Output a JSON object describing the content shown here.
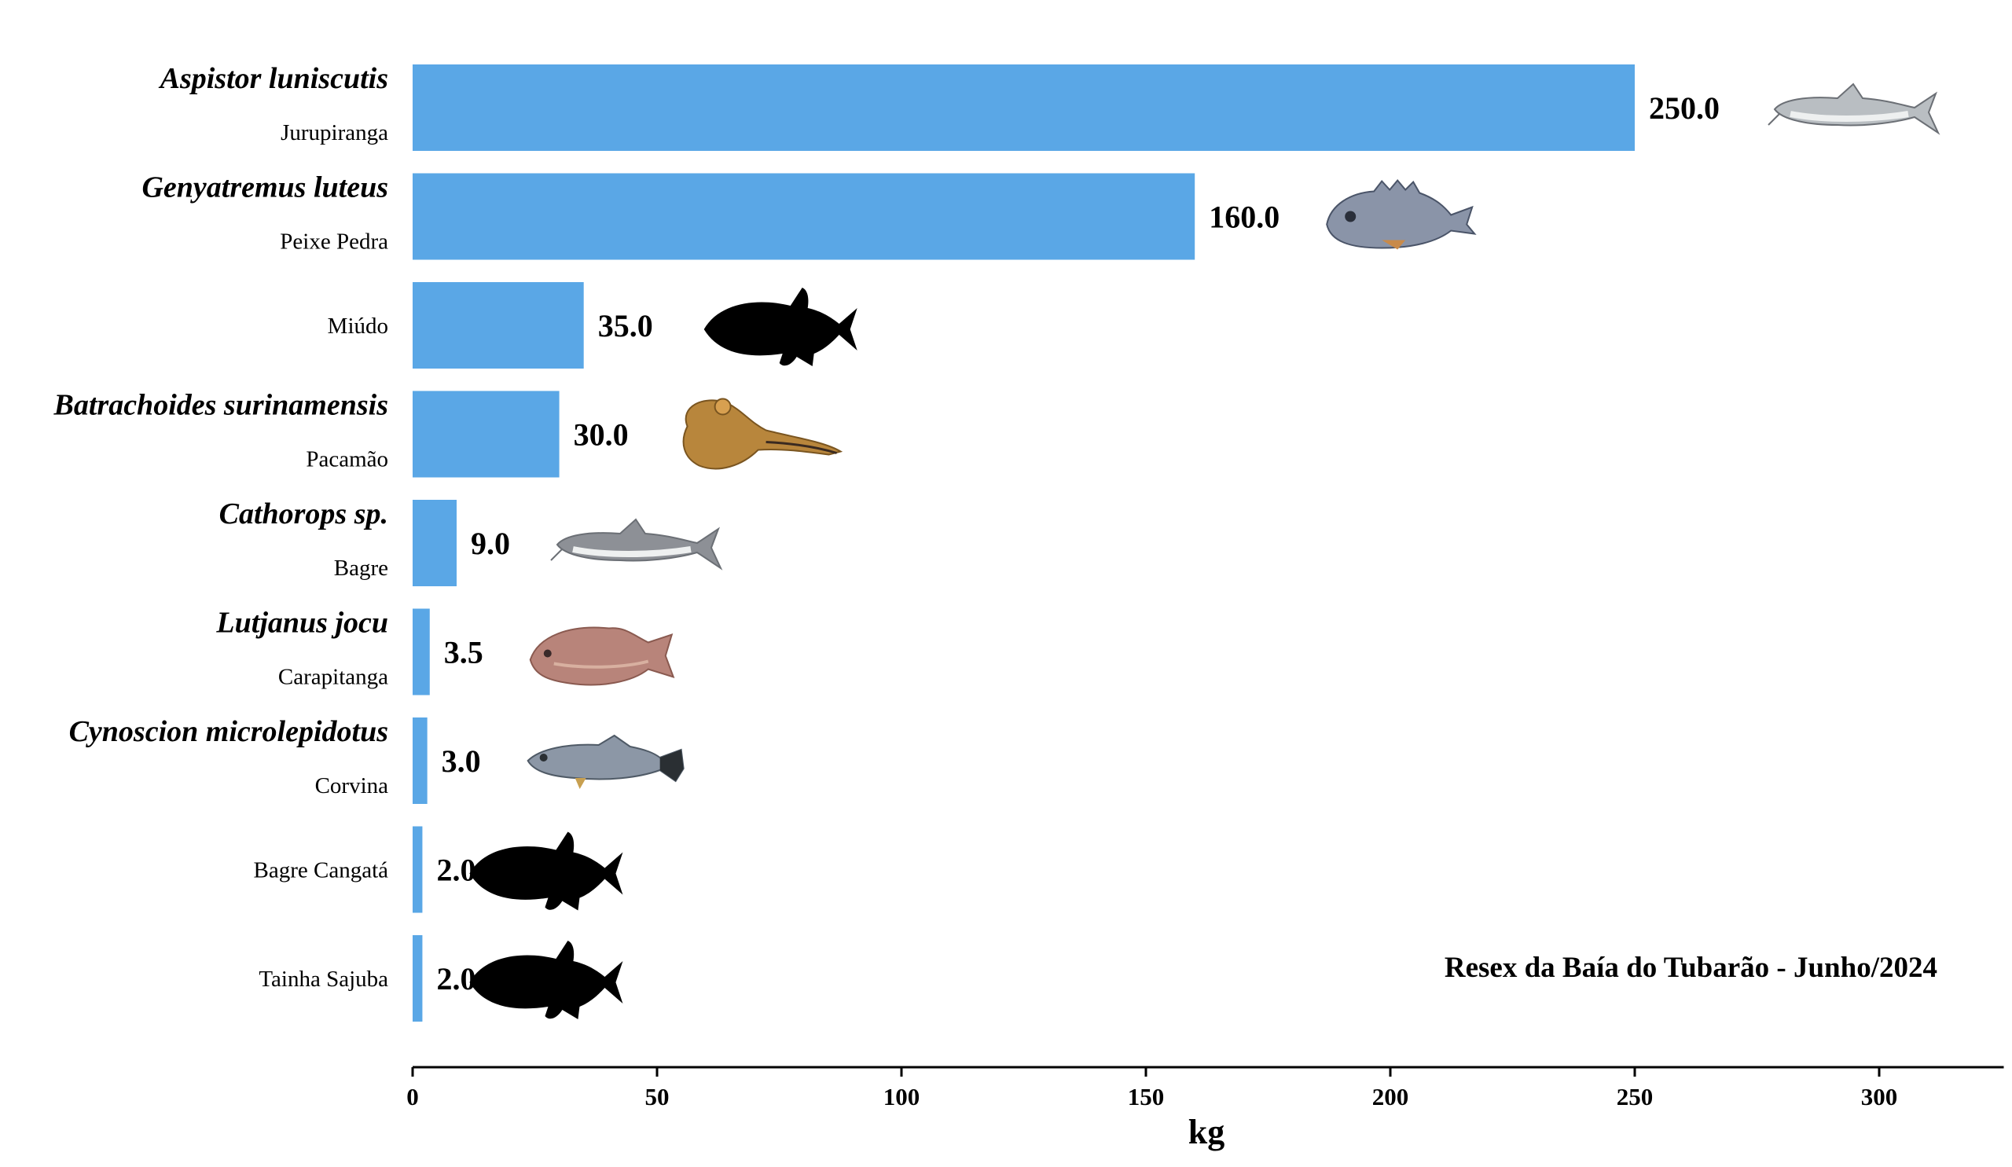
{
  "chart_data": {
    "type": "bar",
    "orientation": "horizontal",
    "categories": [
      {
        "scientific_name": "Aspistor luniscutis",
        "common_name": "Jurupiranga",
        "image": "catfish-photo",
        "image_color": "#b9bec2"
      },
      {
        "scientific_name": "Genyatremus luteus",
        "common_name": "Peixe Pedra",
        "image": "grunt-photo",
        "image_color": "#8a94a8"
      },
      {
        "scientific_name": "",
        "common_name": "Miúdo",
        "image": "fish-silhouette",
        "image_color": "#000000"
      },
      {
        "scientific_name": "Batrachoides surinamensis",
        "common_name": "Pacamão",
        "image": "toadfish-photo",
        "image_color": "#b8863c"
      },
      {
        "scientific_name": "Cathorops sp.",
        "common_name": "Bagre",
        "image": "catfish-photo",
        "image_color": "#8d9096"
      },
      {
        "scientific_name": "Lutjanus jocu",
        "common_name": "Carapitanga",
        "image": "snapper-photo",
        "image_color": "#b8847a"
      },
      {
        "scientific_name": "Cynoscion microlepidotus",
        "common_name": "Corvina",
        "image": "weakfish-photo",
        "image_color": "#8c97a6"
      },
      {
        "scientific_name": "",
        "common_name": "Bagre Cangatá",
        "image": "fish-silhouette",
        "image_color": "#000000"
      },
      {
        "scientific_name": "",
        "common_name": "Tainha Sajuba",
        "image": "fish-silhouette",
        "image_color": "#000000"
      }
    ],
    "values": [
      250.0,
      160.0,
      35.0,
      30.0,
      9.0,
      3.5,
      3.0,
      2.0,
      2.0
    ],
    "value_labels": [
      "250.0",
      "160.0",
      "35.0",
      "30.0",
      "9.0",
      "3.5",
      "3.0",
      "2.0",
      "2.0"
    ],
    "bar_color": "#5aa7e6",
    "xlabel": "kg",
    "xlim": [
      0,
      325
    ],
    "xticks": [
      0,
      50,
      100,
      150,
      200,
      250,
      300
    ],
    "xtick_labels": [
      "0",
      "50",
      "100",
      "150",
      "200",
      "250",
      "300"
    ],
    "annotation": "Resex da Baía do Tubarão - Junho/2024",
    "annotation_placement": "bottom-right",
    "grid": false,
    "legend": "none"
  }
}
